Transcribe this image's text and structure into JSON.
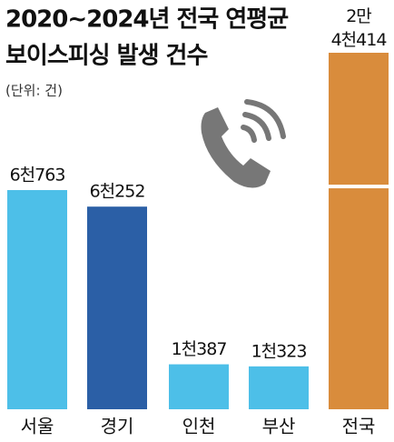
{
  "chart_data": {
    "type": "bar",
    "title": [
      "2020~2024년 전국 연평균",
      "보이스피싱 발생 건수"
    ],
    "subtitle": "(단위: 건)",
    "categories": [
      "서울",
      "경기",
      "인천",
      "부산",
      "전국"
    ],
    "values": [
      6763,
      6252,
      1387,
      1323,
      24414
    ],
    "value_labels": [
      "6천763",
      "6천252",
      "1천387",
      "1천323",
      "2만 4천414"
    ],
    "colors": [
      "#4dbfe8",
      "#2b5fa6",
      "#4dbfe8",
      "#4dbfe8",
      "#d98c3c"
    ],
    "ylim": [
      0,
      11000
    ],
    "axis_break": true
  }
}
